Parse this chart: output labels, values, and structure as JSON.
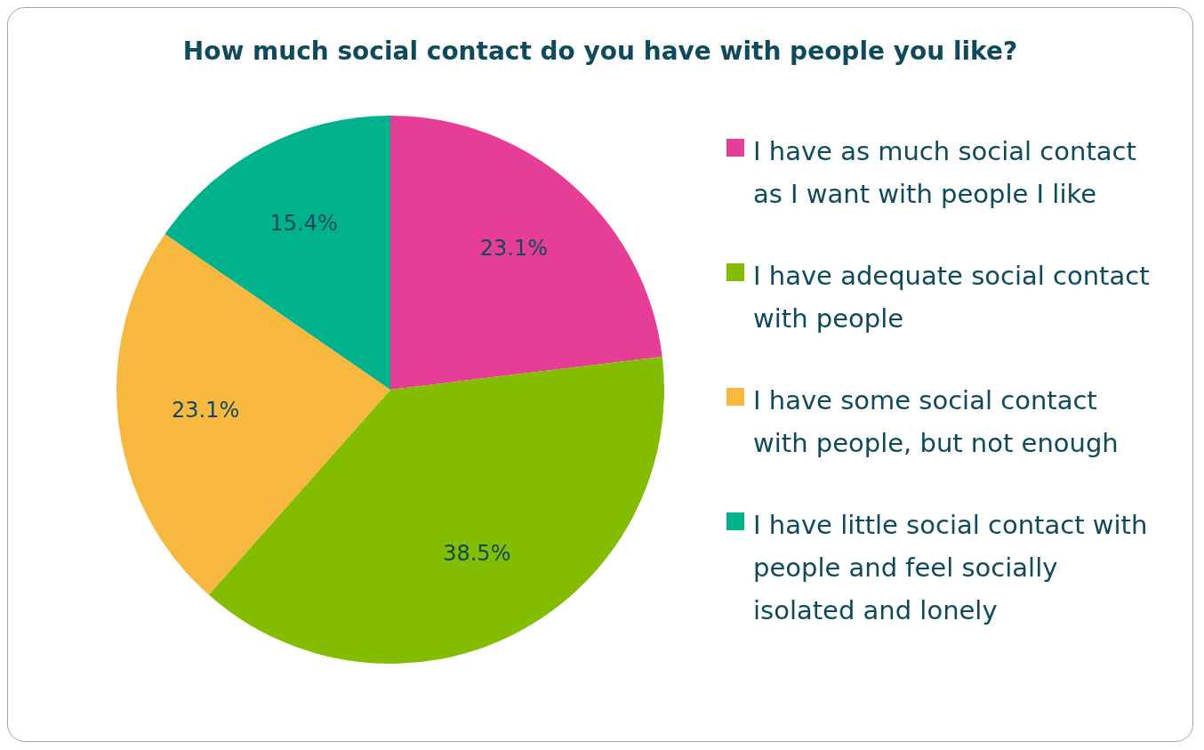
{
  "chart_data": {
    "type": "pie",
    "title": "How much social contact do you have with people you like?",
    "categories": [
      "I have as much social contact as I want with people I like",
      "I have adequate social contact with people",
      "I have some social contact with people, but not enough",
      "I have little social contact with people and feel socially isolated and lonely"
    ],
    "values": [
      23.1,
      38.5,
      23.1,
      15.4
    ],
    "colors": [
      "#e63e96",
      "#84bd00",
      "#f8b73e",
      "#00b28c"
    ],
    "value_labels": [
      "23.1%",
      "38.5%",
      "23.1%",
      "15.4%"
    ],
    "legend": "right"
  }
}
